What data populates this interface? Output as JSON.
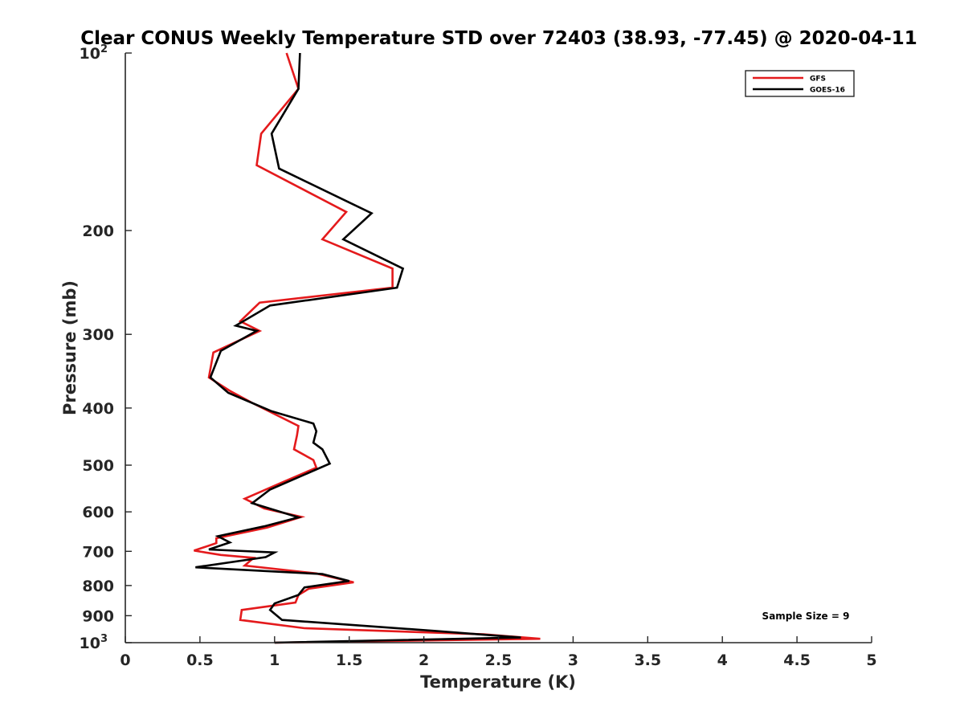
{
  "chart_data": {
    "type": "line",
    "title": "Clear CONUS Weekly Temperature STD over 72403 (38.93, -77.45) @ 2020-04-11",
    "xlabel": "Temperature (K)",
    "ylabel": "Pressure (mb)",
    "xlim": [
      0,
      5
    ],
    "ylim": [
      100,
      1000
    ],
    "y_scale": "log",
    "y_reversed": true,
    "grid": false,
    "legend_position": "top-right",
    "x_ticks": [
      "0",
      "0.5",
      "1",
      "1.5",
      "2",
      "2.5",
      "3",
      "3.5",
      "4",
      "4.5",
      "5"
    ],
    "x_tick_values": [
      0,
      0.5,
      1,
      1.5,
      2,
      2.5,
      3,
      3.5,
      4,
      4.5,
      5
    ],
    "y_ticks": [
      {
        "value": 100,
        "label": "10",
        "sup": "2"
      },
      {
        "value": 200,
        "label": "200",
        "sup": ""
      },
      {
        "value": 300,
        "label": "300",
        "sup": ""
      },
      {
        "value": 400,
        "label": "400",
        "sup": ""
      },
      {
        "value": 500,
        "label": "500",
        "sup": ""
      },
      {
        "value": 600,
        "label": "600",
        "sup": ""
      },
      {
        "value": 700,
        "label": "700",
        "sup": ""
      },
      {
        "value": 800,
        "label": "800",
        "sup": ""
      },
      {
        "value": 900,
        "label": "900",
        "sup": ""
      },
      {
        "value": 1000,
        "label": "10",
        "sup": "3"
      }
    ],
    "annotation": "Sample Size = 9",
    "series": [
      {
        "name": "GFS",
        "color": "#e41a1c",
        "points": [
          [
            1.08,
            100
          ],
          [
            1.16,
            115
          ],
          [
            0.91,
            137
          ],
          [
            0.88,
            155
          ],
          [
            1.48,
            186
          ],
          [
            1.32,
            207
          ],
          [
            1.79,
            232
          ],
          [
            1.79,
            250
          ],
          [
            0.9,
            265
          ],
          [
            0.77,
            285
          ],
          [
            0.9,
            296
          ],
          [
            0.59,
            322
          ],
          [
            0.56,
            355
          ],
          [
            0.7,
            374
          ],
          [
            0.85,
            392
          ],
          [
            1.16,
            429
          ],
          [
            1.15,
            445
          ],
          [
            1.13,
            470
          ],
          [
            1.26,
            490
          ],
          [
            1.28,
            505
          ],
          [
            1.05,
            535
          ],
          [
            0.8,
            570
          ],
          [
            0.93,
            592
          ],
          [
            1.18,
            612
          ],
          [
            0.95,
            638
          ],
          [
            0.61,
            665
          ],
          [
            0.61,
            678
          ],
          [
            0.46,
            698
          ],
          [
            0.64,
            710
          ],
          [
            0.86,
            718
          ],
          [
            0.8,
            740
          ],
          [
            1.28,
            763
          ],
          [
            1.53,
            790
          ],
          [
            1.23,
            810
          ],
          [
            1.16,
            830
          ],
          [
            1.14,
            855
          ],
          [
            0.78,
            880
          ],
          [
            0.77,
            915
          ],
          [
            1.2,
            945
          ],
          [
            2.4,
            968
          ],
          [
            2.78,
            985
          ],
          [
            1.0,
            1000
          ]
        ]
      },
      {
        "name": "GOES-16",
        "color": "#000000",
        "points": [
          [
            1.17,
            100
          ],
          [
            1.16,
            115
          ],
          [
            0.98,
            137
          ],
          [
            1.03,
            157
          ],
          [
            1.65,
            187
          ],
          [
            1.46,
            207
          ],
          [
            1.86,
            232
          ],
          [
            1.82,
            250
          ],
          [
            0.97,
            268
          ],
          [
            0.74,
            290
          ],
          [
            0.88,
            296
          ],
          [
            0.64,
            320
          ],
          [
            0.57,
            355
          ],
          [
            0.69,
            377
          ],
          [
            0.98,
            405
          ],
          [
            1.26,
            425
          ],
          [
            1.28,
            438
          ],
          [
            1.26,
            458
          ],
          [
            1.32,
            470
          ],
          [
            1.37,
            497
          ],
          [
            0.97,
            550
          ],
          [
            0.85,
            580
          ],
          [
            1.16,
            613
          ],
          [
            0.93,
            635
          ],
          [
            0.62,
            660
          ],
          [
            0.7,
            676
          ],
          [
            0.56,
            695
          ],
          [
            1.0,
            703
          ],
          [
            0.94,
            716
          ],
          [
            0.47,
            745
          ],
          [
            1.32,
            765
          ],
          [
            1.5,
            786
          ],
          [
            1.2,
            806
          ],
          [
            1.16,
            830
          ],
          [
            1.0,
            858
          ],
          [
            0.97,
            880
          ],
          [
            1.05,
            915
          ],
          [
            2.07,
            955
          ],
          [
            2.65,
            980
          ],
          [
            1.0,
            1000
          ]
        ]
      }
    ]
  }
}
